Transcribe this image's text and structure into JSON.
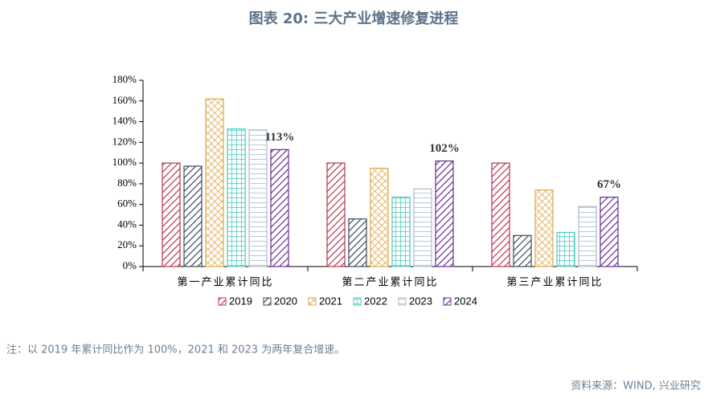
{
  "chart_data": {
    "type": "bar",
    "title": "图表 20: 三大产业增速修复进程",
    "note": "注：以 2019 年累计同比作为 100%，2021 和 2023 为两年复合增速。",
    "source": "资料来源：WIND, 兴业研究",
    "categories": [
      "第一产业累计同比",
      "第二产业累计同比",
      "第三产业累计同比"
    ],
    "series": [
      {
        "name": "2019",
        "color": "#b8344f",
        "pattern": "diagonal",
        "values": [
          100,
          100,
          100
        ]
      },
      {
        "name": "2020",
        "color": "#3b4a5a",
        "pattern": "diagonal",
        "values": [
          97,
          46,
          30
        ]
      },
      {
        "name": "2021",
        "color": "#e0a84a",
        "pattern": "crosshatch",
        "values": [
          162,
          95,
          74
        ]
      },
      {
        "name": "2022",
        "color": "#4cc9c0",
        "pattern": "grid",
        "values": [
          133,
          67,
          33
        ]
      },
      {
        "name": "2023",
        "color": "#a9bccb",
        "pattern": "horizontal",
        "values": [
          132,
          75,
          58
        ]
      },
      {
        "name": "2024",
        "color": "#6a2c91",
        "pattern": "diagonal",
        "values": [
          113,
          102,
          67
        ],
        "value_labels": [
          "113%",
          "102%",
          "67%"
        ]
      }
    ],
    "ylim": [
      0,
      180
    ],
    "yticks": [
      {
        "value": 0,
        "label": "0%"
      },
      {
        "value": 20,
        "label": "20%"
      },
      {
        "value": 40,
        "label": "40%"
      },
      {
        "value": 60,
        "label": "60%"
      },
      {
        "value": 80,
        "label": "80%"
      },
      {
        "value": 100,
        "label": "100%"
      },
      {
        "value": 120,
        "label": "120%"
      },
      {
        "value": 140,
        "label": "140%"
      },
      {
        "value": 160,
        "label": "160%"
      },
      {
        "value": 180,
        "label": "180%"
      }
    ],
    "grid": false,
    "legend": "bottom"
  }
}
